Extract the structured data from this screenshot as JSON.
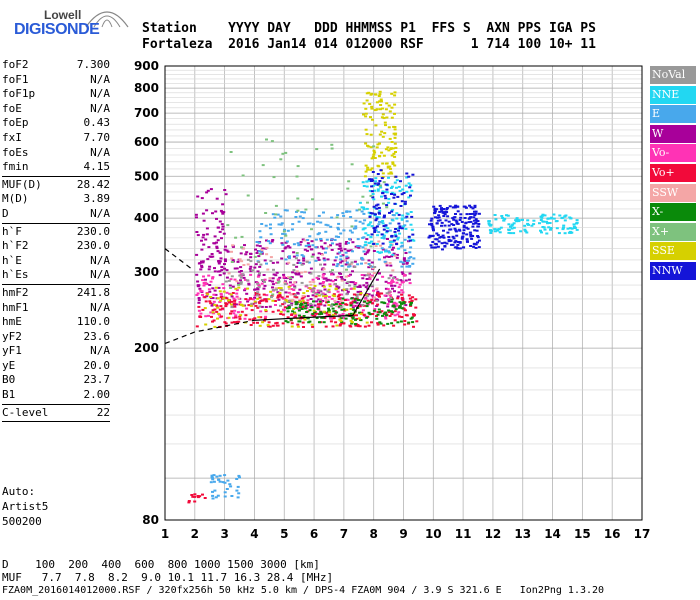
{
  "logo": {
    "line1": "Lowell",
    "line2": "DIGISONDE"
  },
  "header": {
    "line1": "Station    YYYY DAY   DDD HHMMSS P1  FFS S  AXN PPS IGA PS",
    "line2": "Fortaleza  2016 Jan14 014 012000 RSF      1 714 100 10+ 11"
  },
  "param_groups": [
    [
      {
        "name": "foF2",
        "value": "7.300"
      },
      {
        "name": "foF1",
        "value": "N/A"
      },
      {
        "name": "foF1p",
        "value": "N/A"
      },
      {
        "name": "foE",
        "value": "N/A"
      },
      {
        "name": "foEp",
        "value": "0.43"
      },
      {
        "name": "fxI",
        "value": "7.70"
      },
      {
        "name": "foEs",
        "value": "N/A"
      },
      {
        "name": "fmin",
        "value": "4.15"
      }
    ],
    [
      {
        "name": "MUF(D)",
        "value": "28.42"
      },
      {
        "name": "M(D)",
        "value": "3.89"
      },
      {
        "name": "D",
        "value": "N/A"
      }
    ],
    [
      {
        "name": "h`F",
        "value": "230.0"
      },
      {
        "name": "h`F2",
        "value": "230.0"
      },
      {
        "name": "h`E",
        "value": "N/A"
      },
      {
        "name": "h`Es",
        "value": "N/A"
      }
    ],
    [
      {
        "name": "hmF2",
        "value": "241.8"
      },
      {
        "name": "hmF1",
        "value": "N/A"
      },
      {
        "name": "hmE",
        "value": "110.0"
      },
      {
        "name": "yF2",
        "value": "23.6"
      },
      {
        "name": "yF1",
        "value": "N/A"
      },
      {
        "name": "yE",
        "value": "20.0"
      },
      {
        "name": "B0",
        "value": "23.7"
      },
      {
        "name": "B1",
        "value": "2.00"
      }
    ],
    [
      {
        "name": "C-level",
        "value": "22"
      }
    ]
  ],
  "auto": {
    "line1": "Auto:",
    "line2": "Artist5",
    "line3": "500200"
  },
  "legend": [
    {
      "label": "NoVal",
      "color": "#999999"
    },
    {
      "label": "NNE",
      "color": "#22d7f2"
    },
    {
      "label": "E",
      "color": "#48a8ec"
    },
    {
      "label": "W",
      "color": "#a8009a"
    },
    {
      "label": "Vo-",
      "color": "#ff33b5"
    },
    {
      "label": "Vo+",
      "color": "#f20a3a"
    },
    {
      "label": "SSW",
      "color": "#f4a6a6"
    },
    {
      "label": "X-",
      "color": "#0a8a0a"
    },
    {
      "label": "X+",
      "color": "#7ec27e"
    },
    {
      "label": "SSE",
      "color": "#d6d000"
    },
    {
      "label": "NNW",
      "color": "#1414d8"
    }
  ],
  "footer": {
    "line1": "D    100  200  400  600  800 1000 1500 3000 [km]",
    "line2": "MUF   7.7  7.8  8.2  9.0 10.1 11.7 16.3 28.4 [MHz]",
    "line3": "FZA0M_2016014012000.RSF / 320fx256h 50 kHz 5.0 km / DPS-4 FZA0M 904 / 3.9 S 321.6 E   Ion2Png 1.3.20"
  },
  "chart_data": {
    "type": "scatter",
    "title": "",
    "xlabel": "",
    "ylabel": "",
    "xlim": [
      1,
      17
    ],
    "ylim": [
      80,
      900
    ],
    "y_scale": "log",
    "x_ticks": [
      1,
      2,
      3,
      4,
      5,
      6,
      7,
      8,
      9,
      10,
      11,
      12,
      13,
      14,
      15,
      16,
      17
    ],
    "y_ticks": [
      80,
      200,
      300,
      400,
      500,
      600,
      700,
      800,
      900
    ],
    "grid": true,
    "legend_position": "right",
    "trace_F": {
      "x": [
        1.0,
        2.0,
        4.0,
        6.0,
        7.3
      ],
      "y": [
        205,
        218,
        232,
        236,
        238
      ]
    },
    "trace_F_dashed_rise": {
      "x": [
        1.0,
        1.9
      ],
      "y": [
        340,
        305
      ]
    },
    "trace_F_solid_rise": {
      "x": [
        7.3,
        8.2
      ],
      "y": [
        238,
        305
      ]
    },
    "echo_clusters": [
      {
        "direction": "W",
        "xr": [
          2.0,
          9.2
        ],
        "yr": [
          250,
          360
        ],
        "n": 420
      },
      {
        "direction": "Vo-",
        "xr": [
          2.0,
          9.2
        ],
        "yr": [
          235,
          300
        ],
        "n": 220
      },
      {
        "direction": "Vo+",
        "xr": [
          2.0,
          9.4
        ],
        "yr": [
          225,
          270
        ],
        "n": 260
      },
      {
        "direction": "X-",
        "xr": [
          5.0,
          9.3
        ],
        "yr": [
          228,
          262
        ],
        "n": 140
      },
      {
        "direction": "SSE",
        "xr": [
          2.3,
          7.8
        ],
        "yr": [
          225,
          280
        ],
        "n": 90
      },
      {
        "direction": "SSE",
        "xr": [
          7.6,
          8.7
        ],
        "yr": [
          500,
          790
        ],
        "n": 120
      },
      {
        "direction": "SSW",
        "xr": [
          3.0,
          8.8
        ],
        "yr": [
          250,
          360
        ],
        "n": 70
      },
      {
        "direction": "E",
        "xr": [
          4.0,
          9.3
        ],
        "yr": [
          310,
          420
        ],
        "n": 180
      },
      {
        "direction": "E",
        "xr": [
          2.5,
          3.5
        ],
        "yr": [
          90,
          103
        ],
        "n": 35
      },
      {
        "direction": "NNE",
        "xr": [
          7.5,
          9.3
        ],
        "yr": [
          330,
          500
        ],
        "n": 120
      },
      {
        "direction": "NNW",
        "xr": [
          9.8,
          11.5
        ],
        "yr": [
          340,
          430
        ],
        "n": 200
      },
      {
        "direction": "NNW",
        "xr": [
          7.8,
          9.3
        ],
        "yr": [
          350,
          520
        ],
        "n": 90
      },
      {
        "direction": "NNE",
        "xr": [
          11.8,
          14.8
        ],
        "yr": [
          370,
          410
        ],
        "n": 120
      },
      {
        "direction": "W",
        "xr": [
          2.0,
          3.0
        ],
        "yr": [
          300,
          470
        ],
        "n": 60
      },
      {
        "direction": "NoVal",
        "xr": [
          3.0,
          8.8
        ],
        "yr": [
          250,
          330
        ],
        "n": 80
      },
      {
        "direction": "X+",
        "xr": [
          3.0,
          8.5
        ],
        "yr": [
          260,
          620
        ],
        "n": 60
      },
      {
        "direction": "Vo+",
        "xr": [
          1.7,
          2.3
        ],
        "yr": [
          88,
          93
        ],
        "n": 12
      }
    ]
  }
}
